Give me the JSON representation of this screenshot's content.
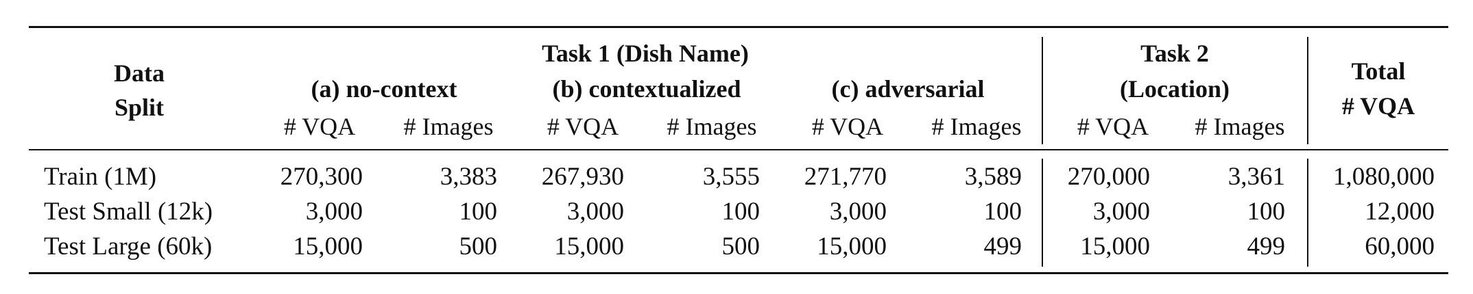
{
  "table": {
    "header": {
      "data_split": [
        "Data",
        "Split"
      ],
      "task1_title": "Task 1 (Dish Name)",
      "group_a": "(a) no-context",
      "group_b": "(b) contextualized",
      "group_c": "(c) adversarial",
      "task2_title": [
        "Task 2",
        "(Location)"
      ],
      "total": [
        "Total",
        "# VQA"
      ],
      "col_vqa": "# VQA",
      "col_images": "# Images"
    },
    "rows": [
      {
        "split": "Train (1M)",
        "a_vqa": "270,300",
        "a_img": "3,383",
        "b_vqa": "267,930",
        "b_img": "3,555",
        "c_vqa": "271,770",
        "c_img": "3,589",
        "t2_vqa": "270,000",
        "t2_img": "3,361",
        "total": "1,080,000"
      },
      {
        "split": "Test Small (12k)",
        "a_vqa": "3,000",
        "a_img": "100",
        "b_vqa": "3,000",
        "b_img": "100",
        "c_vqa": "3,000",
        "c_img": "100",
        "t2_vqa": "3,000",
        "t2_img": "100",
        "total": "12,000"
      },
      {
        "split": "Test Large (60k)",
        "a_vqa": "15,000",
        "a_img": "500",
        "b_vqa": "15,000",
        "b_img": "500",
        "c_vqa": "15,000",
        "c_img": "499",
        "t2_vqa": "15,000",
        "t2_img": "499",
        "total": "60,000"
      }
    ]
  }
}
